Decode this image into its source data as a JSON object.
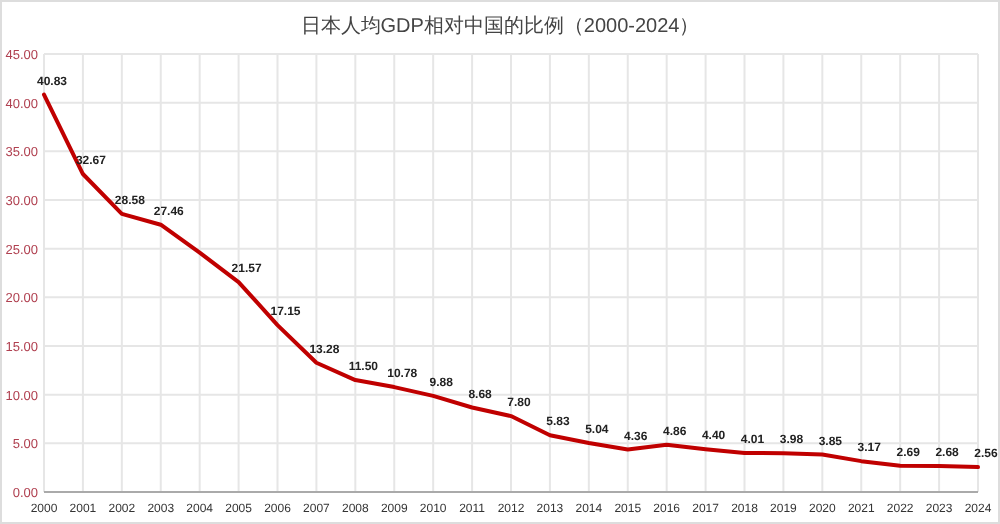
{
  "chart_data": {
    "type": "line",
    "title": "日本人均GDP相对中国的比例（2000-2024）",
    "categories": [
      "2000",
      "2001",
      "2002",
      "2003",
      "2004",
      "2005",
      "2006",
      "2007",
      "2008",
      "2009",
      "2010",
      "2011",
      "2012",
      "2013",
      "2014",
      "2015",
      "2016",
      "2017",
      "2018",
      "2019",
      "2020",
      "2021",
      "2022",
      "2023",
      "2024"
    ],
    "series": [
      {
        "color": "#c00000",
        "values": [
          40.83,
          32.67,
          28.58,
          27.46,
          24.6,
          21.57,
          17.15,
          13.28,
          11.5,
          10.78,
          9.88,
          8.68,
          7.8,
          5.83,
          5.04,
          4.36,
          4.86,
          4.4,
          4.01,
          3.98,
          3.85,
          3.17,
          2.69,
          2.68,
          2.56
        ],
        "value_labels": [
          "40.83",
          "32.67",
          "28.58",
          "27.46",
          null,
          "21.57",
          "17.15",
          "13.28",
          "11.50",
          "10.78",
          "9.88",
          "8.68",
          "7.80",
          "5.83",
          "5.04",
          "4.36",
          "4.86",
          "4.40",
          "4.01",
          "3.98",
          "3.85",
          "3.17",
          "2.69",
          "2.68",
          "2.56"
        ]
      }
    ],
    "ylim": [
      0,
      45
    ],
    "yticks": [
      {
        "value": 0,
        "label": "0.00"
      },
      {
        "value": 5,
        "label": "5.00"
      },
      {
        "value": 10,
        "label": "10.00"
      },
      {
        "value": 15,
        "label": "15.00"
      },
      {
        "value": 20,
        "label": "20.00"
      },
      {
        "value": 25,
        "label": "25.00"
      },
      {
        "value": 30,
        "label": "30.00"
      },
      {
        "value": 35,
        "label": "35.00"
      },
      {
        "value": 40,
        "label": "40.00"
      },
      {
        "value": 45,
        "label": "45.00"
      }
    ],
    "grid": true,
    "marker": "none",
    "line_style": "solid"
  }
}
